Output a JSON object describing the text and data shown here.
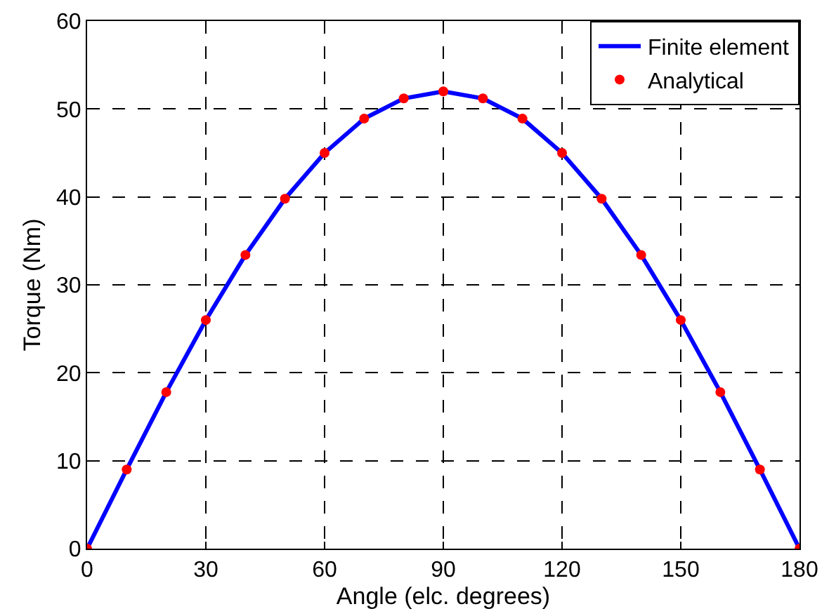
{
  "chart_data": {
    "type": "line",
    "xlabel": "Angle (elc. degrees)",
    "ylabel": "Torque (Nm)",
    "x": [
      0,
      10,
      20,
      30,
      40,
      50,
      60,
      70,
      80,
      90,
      100,
      110,
      120,
      130,
      140,
      150,
      160,
      170,
      180
    ],
    "series": [
      {
        "name": "Finite element",
        "color": "#0000ff",
        "marker": "none",
        "line_style": "solid",
        "values": [
          0,
          9,
          17.8,
          26,
          33.4,
          39.8,
          45,
          48.9,
          51.2,
          52,
          51.2,
          48.9,
          45,
          39.8,
          33.4,
          26,
          17.8,
          9,
          0
        ]
      },
      {
        "name": "Analytical",
        "type": "scatter",
        "color": "#ff0000",
        "marker": "circle",
        "values": [
          0,
          9,
          17.8,
          26,
          33.4,
          39.8,
          45,
          48.9,
          51.2,
          52,
          51.2,
          48.9,
          45,
          39.8,
          33.4,
          26,
          17.8,
          9,
          0
        ]
      }
    ],
    "xlim": [
      0,
      180
    ],
    "xticks": [
      0,
      30,
      60,
      90,
      120,
      150,
      180
    ],
    "ylim": [
      0,
      60
    ],
    "yticks": [
      0,
      10,
      20,
      30,
      40,
      50,
      60
    ],
    "grid": true,
    "legend": "top right"
  }
}
